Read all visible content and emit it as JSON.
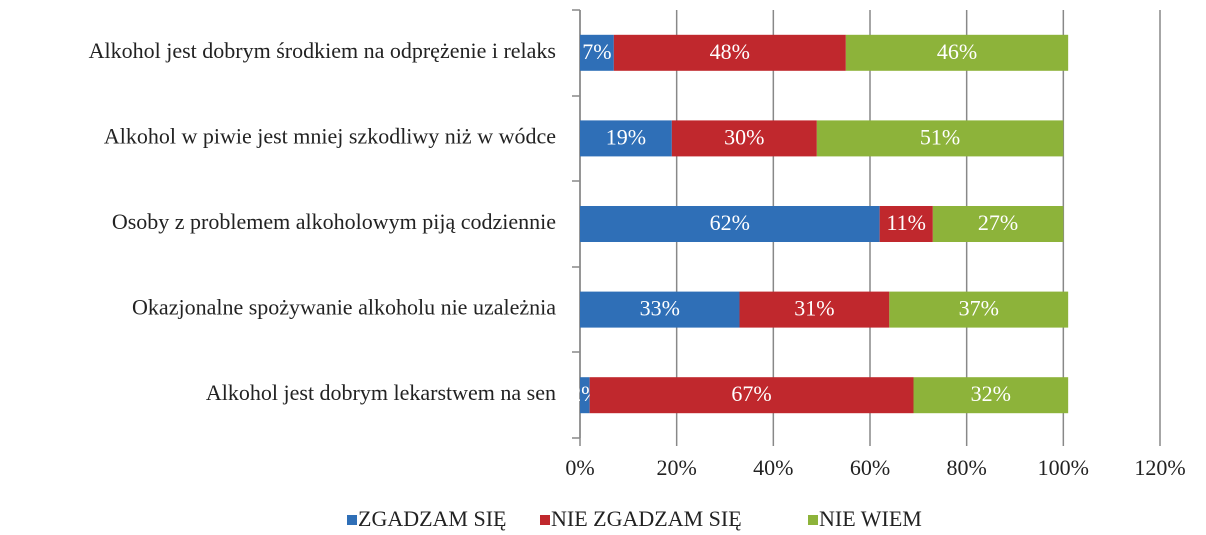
{
  "chart_data": {
    "type": "stacked_barh",
    "categories": [
      "Alkohol jest dobrym środkiem na odprężenie i relaks",
      "Alkohol w piwie jest mniej szkodliwy niż w wódce",
      "Osoby z problemem alkoholowym piją codziennie",
      "Okazjonalne spożywanie alkoholu nie uzależnia",
      "Alkohol jest dobrym lekarstwem na sen"
    ],
    "series": [
      {
        "name": "ZGADZAM SIĘ",
        "color": "#2f6fb7",
        "values": [
          7,
          19,
          62,
          33,
          2
        ],
        "value_labels": [
          "7%",
          "19%",
          "62%",
          "33%",
          "2%"
        ]
      },
      {
        "name": "NIE ZGADZAM SIĘ",
        "color": "#c0282d",
        "values": [
          48,
          30,
          11,
          31,
          67
        ],
        "value_labels": [
          "48%",
          "30%",
          "11%",
          "31%",
          "67%"
        ]
      },
      {
        "name": "NIE WIEM",
        "color": "#8db33a",
        "values": [
          46,
          51,
          27,
          37,
          32
        ],
        "value_labels": [
          "46%",
          "51%",
          "27%",
          "37%",
          "32%"
        ]
      }
    ],
    "xlim": [
      0,
      120
    ],
    "xticks": [
      {
        "value": 0,
        "label": "0%"
      },
      {
        "value": 20,
        "label": "20%"
      },
      {
        "value": 40,
        "label": "40%"
      },
      {
        "value": 60,
        "label": "60%"
      },
      {
        "value": 80,
        "label": "80%"
      },
      {
        "value": 100,
        "label": "100%"
      },
      {
        "value": 120,
        "label": "120%"
      }
    ],
    "grid": true,
    "legend": "bottom"
  }
}
